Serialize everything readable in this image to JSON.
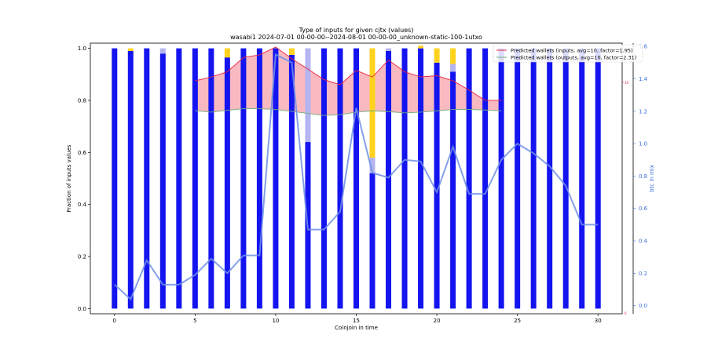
{
  "chart_data": {
    "type": "bar",
    "title": "Type of inputs for given cjtx (values)",
    "subtitle": "wasabi1 2024-07-01 00-00-00--2024-08-01 00-00-00_unknown-static-100-1utxo",
    "xlabel": "Coinjoin in time",
    "ylabel": "Fraction of inputs values",
    "ylabel_right": "btc in mix",
    "xlim": [
      -1.5,
      31.5
    ],
    "ylim": [
      -0.02,
      1.02
    ],
    "ylim_right": [
      -0.05,
      1.62
    ],
    "x_ticks": [
      0,
      5,
      10,
      15,
      20,
      25,
      30
    ],
    "y_ticks": [
      0.0,
      0.2,
      0.4,
      0.6,
      0.8,
      1.0
    ],
    "y_ticks_right": [
      0.0,
      0.2,
      0.4,
      0.6,
      0.8,
      1.0,
      1.2,
      1.4,
      1.6
    ],
    "y_ticks_right_labels": [
      "0.0",
      "0.2",
      "0.4",
      "0.6",
      "0.8",
      "1.0",
      "1.2",
      "1.4",
      "1.6"
    ],
    "inner_axis_labels": [
      "10",
      "0"
    ],
    "x": [
      0,
      1,
      2,
      3,
      4,
      5,
      6,
      7,
      8,
      9,
      10,
      11,
      12,
      13,
      14,
      15,
      16,
      17,
      18,
      19,
      20,
      21,
      22,
      23,
      24,
      25,
      26,
      27,
      28,
      29,
      30
    ],
    "stacked_series": [
      {
        "color": "#1414f0",
        "values": [
          1.0,
          0.99,
          1.0,
          0.98,
          1.0,
          1.0,
          1.0,
          0.965,
          1.0,
          1.0,
          1.0,
          0.975,
          0.64,
          1.0,
          1.0,
          1.0,
          0.52,
          0.99,
          1.0,
          1.0,
          0.945,
          0.91,
          1.0,
          1.0,
          1.0,
          1.0,
          1.0,
          1.0,
          1.0,
          1.0,
          1.0
        ]
      },
      {
        "color": "#b4b4f0",
        "values": [
          0,
          0,
          0,
          0.02,
          0,
          0,
          0,
          0,
          0,
          0,
          0,
          0,
          0.36,
          0,
          0,
          0,
          0.06,
          0.01,
          0,
          0,
          0,
          0.03,
          0,
          0,
          0,
          0,
          0,
          0,
          0,
          0,
          0
        ]
      },
      {
        "color": "#ffd21e",
        "values": [
          0,
          0.01,
          0,
          0,
          0,
          0,
          0,
          0.035,
          0,
          0,
          0,
          0.025,
          0,
          0,
          0,
          0,
          0.42,
          0,
          0,
          0.01,
          0.055,
          0.06,
          0,
          0,
          0,
          0,
          0,
          0,
          0,
          0,
          0
        ]
      }
    ],
    "series": [
      {
        "name": "Predicted wallets (inputs, avg=10, factor=1.95)",
        "color": "#e8213c",
        "x": [
          5,
          6,
          7,
          8,
          9,
          10,
          11,
          12,
          13,
          14,
          15,
          16,
          17,
          18,
          19,
          20,
          21,
          22,
          23,
          24
        ],
        "values": [
          0.875,
          0.89,
          0.91,
          0.965,
          0.975,
          1.005,
          0.96,
          0.92,
          0.88,
          0.86,
          0.915,
          0.89,
          0.955,
          0.91,
          0.89,
          0.895,
          0.875,
          0.84,
          0.8,
          0.8
        ]
      },
      {
        "name": "Predicted wallets (outputs, avg=10, factor=2.31)",
        "color": "#6fae7a",
        "x": [
          5,
          6,
          7,
          8,
          9,
          10,
          11,
          12,
          13,
          14,
          15,
          16,
          17,
          18,
          19,
          20,
          21,
          22,
          23,
          24
        ],
        "values": [
          0.76,
          0.755,
          0.762,
          0.768,
          0.768,
          0.765,
          0.758,
          0.75,
          0.742,
          0.745,
          0.755,
          0.76,
          0.757,
          0.752,
          0.755,
          0.76,
          0.765,
          0.765,
          0.763,
          0.76
        ]
      },
      {
        "name": "btc in mix",
        "axis": "right",
        "color": "#6f8fe6",
        "x": [
          0,
          1,
          2,
          3,
          4,
          5,
          6,
          7,
          8,
          9,
          10,
          11,
          12,
          13,
          14,
          15,
          16,
          17,
          18,
          19,
          20,
          21,
          22,
          23,
          24,
          25,
          26,
          27,
          28,
          29,
          30
        ],
        "values": [
          0.13,
          0.04,
          0.28,
          0.13,
          0.13,
          0.19,
          0.29,
          0.2,
          0.31,
          0.31,
          1.55,
          1.5,
          0.47,
          0.47,
          0.58,
          1.22,
          0.82,
          0.79,
          0.9,
          0.89,
          0.7,
          0.98,
          0.69,
          0.69,
          0.9,
          1.0,
          0.94,
          0.86,
          0.74,
          0.5,
          0.5
        ]
      }
    ],
    "legend_position": "top-right",
    "grid": false
  }
}
